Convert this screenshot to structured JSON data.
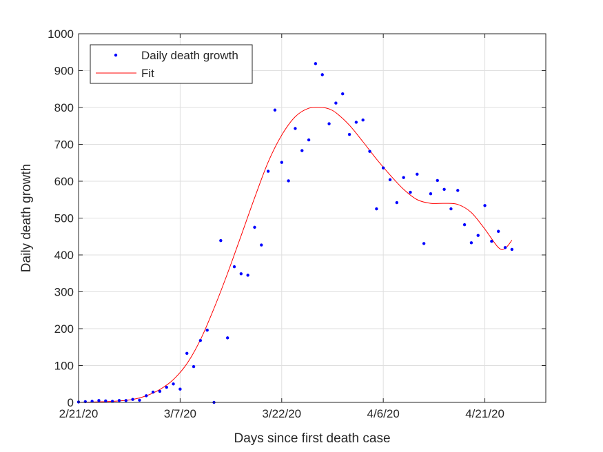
{
  "chart_data": {
    "type": "scatter",
    "title": "",
    "xlabel": "Days since first death case",
    "ylabel": "Daily death growth",
    "x_ticks": [
      {
        "day": 0,
        "label": "2/21/20"
      },
      {
        "day": 15,
        "label": "3/7/20"
      },
      {
        "day": 30,
        "label": "3/22/20"
      },
      {
        "day": 45,
        "label": "4/6/20"
      },
      {
        "day": 60,
        "label": "4/21/20"
      }
    ],
    "xlim": [
      0,
      69
    ],
    "ylim": [
      0,
      1000
    ],
    "y_ticks": [
      0,
      100,
      200,
      300,
      400,
      500,
      600,
      700,
      800,
      900,
      1000
    ],
    "grid": true,
    "legend": "top-left",
    "series": [
      {
        "name": "Daily death growth",
        "kind": "points",
        "color": "#0000ff",
        "x": [
          0,
          1,
          2,
          3,
          4,
          5,
          6,
          7,
          8,
          9,
          10,
          11,
          12,
          13,
          14,
          15,
          16,
          17,
          18,
          19,
          20,
          21,
          22,
          23,
          24,
          25,
          26,
          27,
          28,
          29,
          30,
          31,
          32,
          33,
          34,
          35,
          36,
          37,
          38,
          39,
          40,
          41,
          42,
          43,
          44,
          45,
          46,
          47,
          48,
          49,
          50,
          51,
          52,
          53,
          54,
          55,
          56,
          57,
          58,
          59,
          60,
          61,
          62,
          63,
          64
        ],
        "y": [
          1,
          2,
          3,
          5,
          4,
          3,
          5,
          5,
          8,
          6,
          18,
          28,
          30,
          41,
          50,
          36,
          133,
          97,
          168,
          196,
          0,
          439,
          175,
          368,
          349,
          345,
          475,
          427,
          627,
          793,
          651,
          601,
          743,
          683,
          712,
          919,
          889,
          756,
          812,
          837,
          727,
          760,
          766,
          681,
          525,
          636,
          604,
          542,
          610,
          570,
          619,
          431,
          566,
          602,
          578,
          525,
          575,
          482,
          433,
          453,
          534,
          437,
          464,
          420,
          415
        ]
      },
      {
        "name": "Fit",
        "kind": "line",
        "color": "#ff0000",
        "x": [
          0,
          2,
          4,
          6,
          8,
          10,
          12,
          14,
          16,
          18,
          20,
          22,
          24,
          26,
          28,
          30,
          32,
          34,
          36,
          37,
          38,
          40,
          42,
          44,
          46,
          48,
          50,
          52,
          54,
          56,
          58,
          60,
          62,
          63,
          64
        ],
        "y": [
          0,
          1,
          2,
          4,
          8,
          18,
          35,
          62,
          105,
          170,
          255,
          350,
          452,
          555,
          652,
          725,
          775,
          798,
          800,
          796,
          786,
          752,
          707,
          660,
          617,
          578,
          550,
          540,
          540,
          537,
          515,
          470,
          420,
          418,
          440
        ]
      }
    ]
  }
}
